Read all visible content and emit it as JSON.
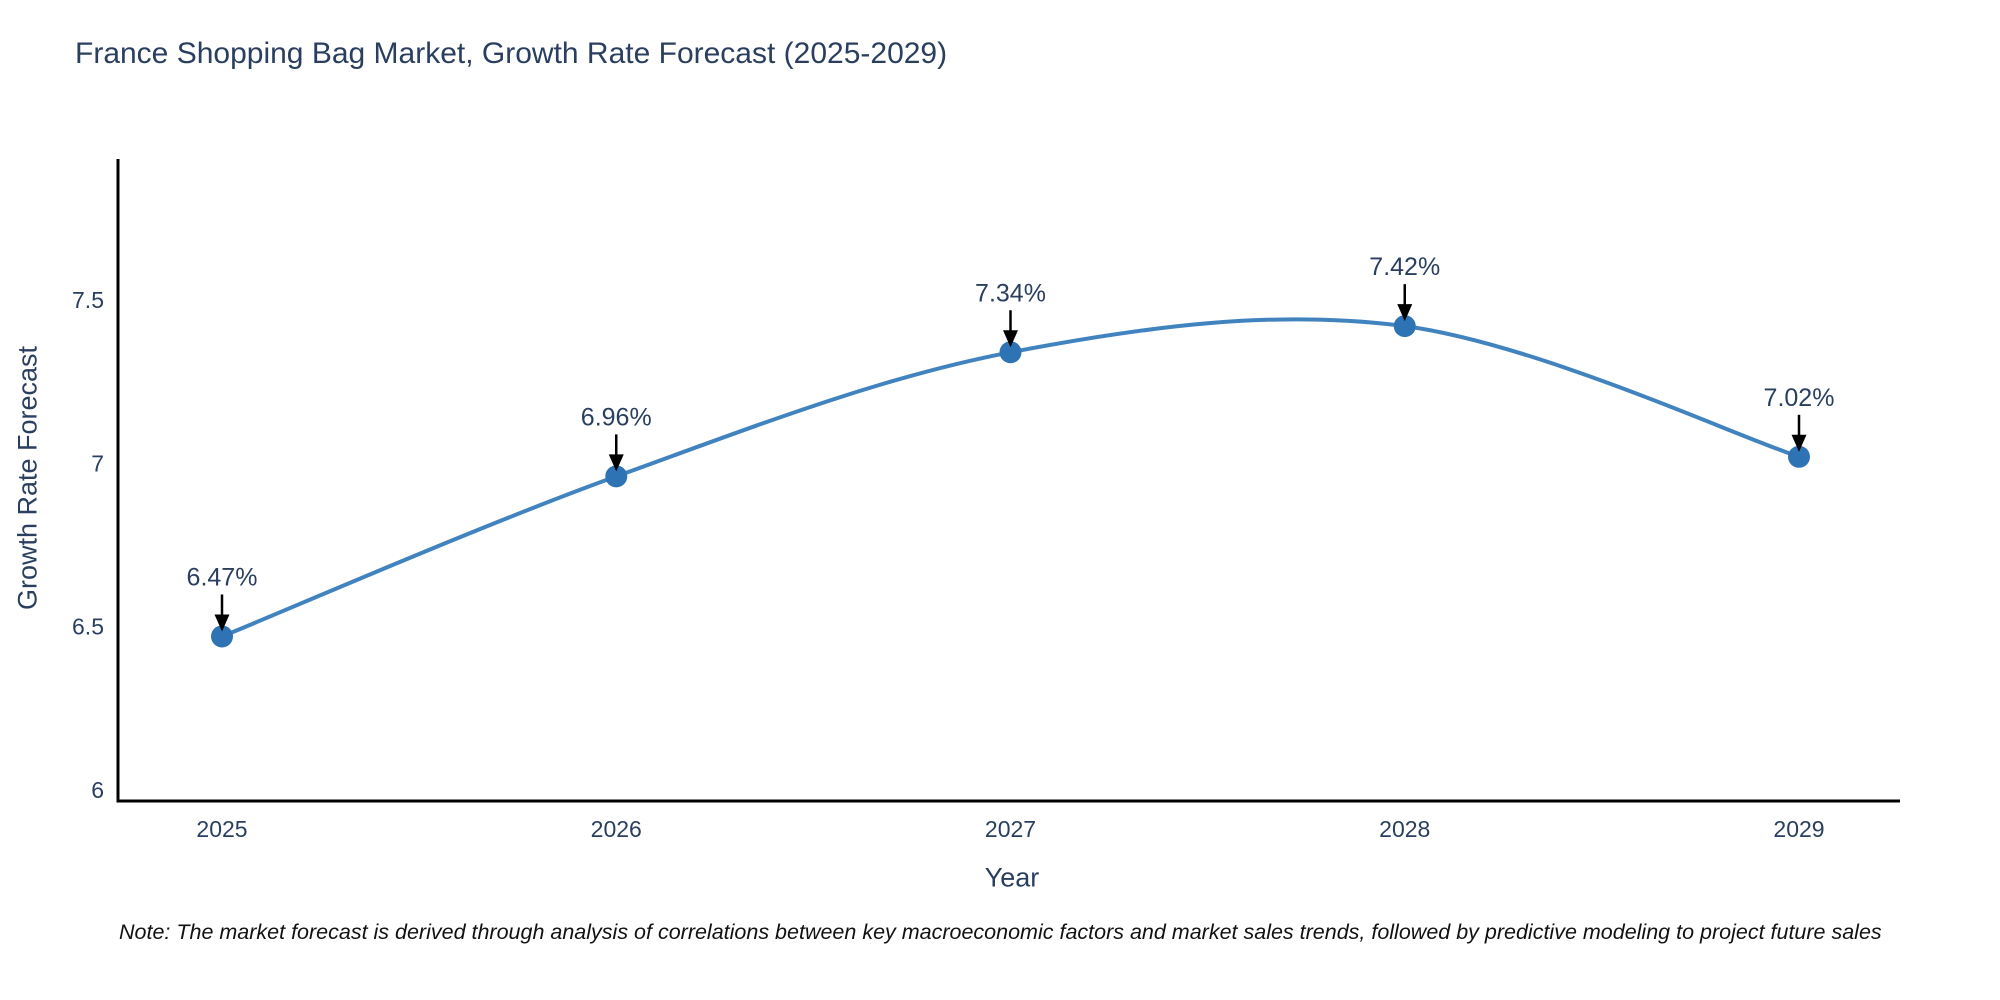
{
  "page": {
    "background": "#ffffff"
  },
  "chart_data": {
    "type": "line",
    "title": "France Shopping Bag Market, Growth Rate Forecast (2025-2029)",
    "xlabel": "Year",
    "ylabel": "Growth Rate Forecast",
    "categories": [
      "2025",
      "2026",
      "2027",
      "2028",
      "2029"
    ],
    "x": [
      2025,
      2026,
      2027,
      2028,
      2029
    ],
    "values": [
      6.47,
      6.96,
      7.34,
      7.42,
      7.02
    ],
    "point_labels": [
      "6.47%",
      "6.96%",
      "7.34%",
      "7.42%",
      "7.02%"
    ],
    "yticks": [
      6,
      6.5,
      7,
      7.5
    ],
    "ytick_labels": [
      "6",
      "6.5",
      "7",
      "7.5"
    ],
    "ylim": [
      5.97,
      7.93
    ],
    "xlim": [
      2024.74,
      2029.26
    ],
    "grid": false,
    "legend_position": "none",
    "smooth_curve": true,
    "colors": {
      "line": "#4183bf",
      "marker": "#2e74b5",
      "axis_line": "#000000",
      "tick_text": "#2a3f5f",
      "annotation_text": "#2a3f5f",
      "annotation_arrow": "#000000"
    }
  },
  "footnote": {
    "text": "Note: The market forecast is derived through analysis of correlations between key macroeconomic factors and market sales trends, followed by predictive modeling to project future sales"
  }
}
